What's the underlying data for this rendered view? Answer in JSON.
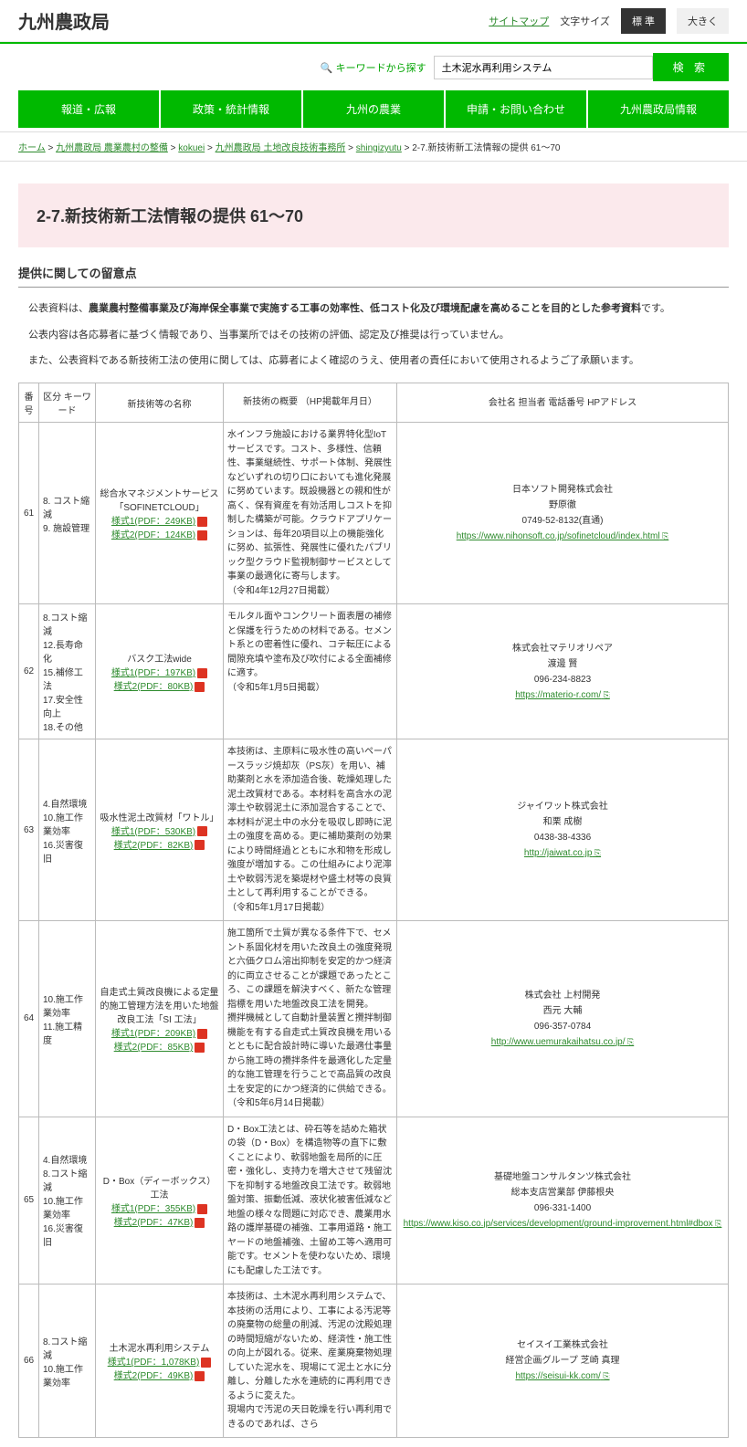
{
  "header": {
    "logo": "九州農政局",
    "sitemap": "サイトマップ",
    "fontsize_label": "文字サイズ",
    "font_standard": "標 準",
    "font_large": "大きく"
  },
  "search": {
    "label": "キーワードから探す",
    "value": "土木泥水再利用システム",
    "button": "検 索"
  },
  "nav": [
    "報道・広報",
    "政策・統計情報",
    "九州の農業",
    "申請・お問い合わせ",
    "九州農政局情報"
  ],
  "breadcrumb": {
    "items": [
      "ホーム",
      "九州農政局  農業農村の整備",
      "kokuei",
      "九州農政局  土地改良技術事務所",
      "shingizyutu"
    ],
    "current": "2-7.新技術新工法情報の提供 61～70"
  },
  "page_title": "2-7.新技術新工法情報の提供 61～70",
  "section_head": "提供に関しての留意点",
  "notice": {
    "p1a": "公表資料は、",
    "p1b": "農業農村整備事業及び海岸保全事業で実施する工事の効率性、低コスト化及び環境配慮を高めることを目的とした参考資料",
    "p1c": "です。",
    "p2": "公表内容は各応募者に基づく情報であり、当事業所ではその技術の評価、認定及び推奨は行っていません。",
    "p3": "また、公表資料である新技術工法の使用に関しては、応募者によく確認のうえ、使用者の責任において使用されるようご了承願います。"
  },
  "table": {
    "head": {
      "no": "番号",
      "kw": "区分\nキーワード",
      "name": "新技術等の名称",
      "desc": "新技術の概要\n（HP掲載年月日）",
      "co": "会社名\n担当者\n電話番号\nHPアドレス"
    },
    "rows": [
      {
        "no": "61",
        "kw": "8. コスト縮減\n9. 施設管理",
        "name_line1": "総合水マネジメントサービス「SOFINETCLOUD」",
        "pdf1": "様式1(PDF：249KB)",
        "pdf2": "様式2(PDF：124KB)",
        "desc": "水インフラ施設における業界特化型IoTサービスです。コスト、多様性、信頼性、事業継続性、サポート体制、発展性などいずれの切り口においても進化発展に努めています。既設機器との親和性が高く、保有資産を有効活用しコストを抑制した構築が可能。クラウドアプリケーションは、毎年20項目以上の機能強化に努め、拡張性、発展性に優れたパブリック型クラウド監視制御サービスとして事業の最適化に寄与します。\n（令和4年12月27日掲載）",
        "co_name": "日本ソフト開発株式会社",
        "co_person": "野原徹",
        "co_tel": "0749-52-8132(直通)",
        "co_url": "https://www.nihonsoft.co.jp/sofinetcloud/index.html"
      },
      {
        "no": "62",
        "kw": "8.コスト縮減\n12.長寿命化\n15.補修工法\n17.安全性向上\n18.その他",
        "name_line1": "バスク工法wide",
        "pdf1": "様式1(PDF：197KB)",
        "pdf2": "様式2(PDF：80KB)",
        "desc": "モルタル面やコンクリート面表層の補修と保護を行うための材料である。セメント系との密着性に優れ、コテ転圧による間隙充填や塗布及び吹付による全面補修に適す。\n（令和5年1月5日掲載）",
        "co_name": "株式会社マテリオリペア",
        "co_person": "渡邊 賢",
        "co_tel": "096-234-8823",
        "co_url": "https://materio-r.com/"
      },
      {
        "no": "63",
        "kw": "4.自然環境\n10.施工作業効率\n16.災害復旧",
        "name_line1": "吸水性泥土改質材「ワトル」",
        "pdf1": "様式1(PDF：530KB)",
        "pdf2": "様式2(PDF：82KB)",
        "desc": "本技術は、主原料に吸水性の高いペーパースラッジ焼却灰（PS灰）を用い、補助薬剤と水を添加造合後、乾燥処理した泥土改質材である。本材料を高含水の泥濘土や軟弱泥土に添加混合することで、本材料が泥土中の水分を吸収し即時に泥土の強度を高める。更に補助薬剤の効果により時間経過とともに水和物を形成し強度が増加する。この仕組みにより泥濘土や軟弱汚泥を築堤材や盛土材等の良質土として再利用することができる。\n（令和5年1月17日掲載）",
        "co_name": "ジャイワット株式会社",
        "co_person": "和栗 成樹",
        "co_tel": "0438-38-4336",
        "co_url": "http://jaiwat.co.jp"
      },
      {
        "no": "64",
        "kw": "10.施工作業効率\n11.施工精度",
        "name_line1": "自走式土質改良機による定量的施工管理方法を用いた地盤改良工法「SI 工法」",
        "pdf1": "様式1(PDF：209KB)",
        "pdf2": "様式2(PDF：85KB)",
        "desc": "施工箇所で土質が異なる条件下で、セメント系固化材を用いた改良土の強度発現と六価クロム溶出抑制を安定的かつ経済的に両立させることが課題であったところ、この課題を解決すべく、新たな管理指標を用いた地盤改良工法を開発。\n攪拌機械として自動計量装置と攪拌制御機能を有する自走式土質改良機を用いるとともに配合設計時に導いた最適仕事量から施工時の攪拌条件を最適化した定量的な施工管理を行うことで高品質の改良土を安定的にかつ経済的に供給できる。\n（令和5年6月14日掲載）",
        "co_name": "株式会社 上村開発",
        "co_person": "西元 大輔",
        "co_tel": "096-357-0784",
        "co_url": "http://www.uemurakaihatsu.co.jp/"
      },
      {
        "no": "65",
        "kw": "4.自然環境\n8.コスト縮減\n10.施工作業効率\n16.災害復旧",
        "name_line1": "D・Box（ディーボックス）工法",
        "pdf1": "様式1(PDF：355KB)",
        "pdf2": "様式2(PDF：47KB)",
        "desc": "D・Box工法とは、砕石等を詰めた箱状の袋（D・Box）を構造物等の直下に敷くことにより、軟弱地盤を局所的に圧密・強化し、支持力を増大させて残留沈下を抑制する地盤改良工法です。軟弱地盤対策、振動低減、液状化被害低減など地盤の様々な問題に対応でき、農業用水路の護岸基礎の補強、工事用道路・施工\nヤードの地盤補強、土留め工等へ適用可能です。セメントを使わないため、環境にも配慮した工法です。",
        "co_name": "基礎地盤コンサルタンツ株式会社",
        "co_person": "総本支店営業部 伊藤根央",
        "co_tel": "096-331-1400",
        "co_url": "https://www.kiso.co.jp/services/development/ground-improvement.html#dbox"
      },
      {
        "no": "66",
        "kw": "8.コスト縮減\n10.施工作業効率",
        "name_line1": "土木泥水再利用システム",
        "pdf1": "様式1(PDF：1,078KB)",
        "pdf2": "様式2(PDF：49KB)",
        "desc": "本技術は、土木泥水再利用システムで、本技術の活用により、工事による汚泥等の廃棄物の総量の削減、汚泥の沈殿処理の時間短縮がないため、経済性・施工性の向上が図れる。従来、産業廃棄物処理していた泥水を、現場にて泥土と水に分離し、分離した水を連続的に再利用できるように変えた。\n現場内で汚泥の天日乾燥を行い再利用できるのであれば、さら",
        "co_name": "セイスイ工業株式会社",
        "co_person": "経営企画グループ 芝崎 真理",
        "co_tel": "",
        "co_url": "https://seisui-kk.com/"
      }
    ]
  }
}
